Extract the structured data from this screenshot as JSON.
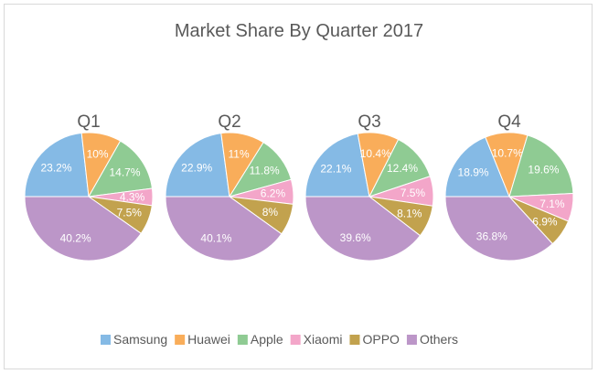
{
  "chart_data": {
    "type": "pie",
    "title": "Market Share By Quarter 2017",
    "categories": [
      "Samsung",
      "Huawei",
      "Apple",
      "Xiaomi",
      "OPPO",
      "Others"
    ],
    "colors": [
      "#85bae5",
      "#f9ad5a",
      "#8fcb93",
      "#f3a6c9",
      "#c2a24e",
      "#bc96c8"
    ],
    "legend_position": "bottom",
    "pies": [
      {
        "label": "Q1",
        "values": [
          23.2,
          10,
          14.7,
          4.3,
          7.5,
          40.2
        ],
        "labels": [
          "23.2%",
          "10%",
          "14.7%",
          "4.3%",
          "7.5%",
          "40.2%"
        ]
      },
      {
        "label": "Q2",
        "values": [
          22.9,
          11,
          11.8,
          6.2,
          8,
          40.1
        ],
        "labels": [
          "22.9%",
          "11%",
          "11.8%",
          "6.2%",
          "8%",
          "40.1%"
        ]
      },
      {
        "label": "Q3",
        "values": [
          22.1,
          10.4,
          12.4,
          7.5,
          8.1,
          39.6
        ],
        "labels": [
          "22.1%",
          "10.4%",
          "12.4%",
          "7.5%",
          "8.1%",
          "39.6%"
        ]
      },
      {
        "label": "Q4",
        "values": [
          18.9,
          10.7,
          19.6,
          7.1,
          6.9,
          36.8
        ],
        "labels": [
          "18.9%",
          "10.7%",
          "19.6%",
          "7.1%",
          "6.9%",
          "36.8%"
        ]
      }
    ]
  }
}
